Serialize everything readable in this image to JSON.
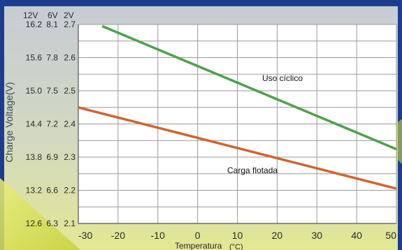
{
  "chart_data": {
    "type": "line",
    "xlabel": "Temperatura",
    "xunit": "(°C)",
    "ylabel": "Charge Voltage(V)",
    "x_ticks": [
      "-30",
      "-20",
      "-10",
      "0",
      "10",
      "20",
      "30",
      "40",
      "50"
    ],
    "xlim": [
      -30,
      50
    ],
    "ylim": [
      2.1,
      2.7
    ],
    "axis_headers": [
      "12V",
      "6V",
      "2V"
    ],
    "y_ticks": [
      {
        "v12": "16.2",
        "v6": "8.1",
        "v2": "2.7"
      },
      {
        "v12": "15.6",
        "v6": "7.8",
        "v2": "2.6"
      },
      {
        "v12": "15.0",
        "v6": "7.5",
        "v2": "2.5"
      },
      {
        "v12": "14.4",
        "v6": "7.2",
        "v2": "2.4"
      },
      {
        "v12": "13.8",
        "v6": "6.9",
        "v2": "2.3"
      },
      {
        "v12": "13.2",
        "v6": "6.6",
        "v2": "2.2"
      },
      {
        "v12": "12.6",
        "v6": "6.3",
        "v2": "2.1"
      }
    ],
    "grid": true,
    "series": [
      {
        "name": "Uso cíclico",
        "color": "#4ea24a",
        "x": [
          -24,
          50
        ],
        "y": [
          2.695,
          2.324
        ]
      },
      {
        "name": "Carga flotada",
        "color": "#d0652f",
        "x": [
          -30,
          50
        ],
        "y": [
          2.45,
          2.205
        ]
      }
    ]
  },
  "colors": {
    "frame": "#1c3d8f",
    "plot_bg": "#ffffff",
    "grid": "#9a9a9a",
    "panel_top": "#c9cfd6",
    "panel_bottom": "#dfe590",
    "accent": "#cdd63a"
  }
}
